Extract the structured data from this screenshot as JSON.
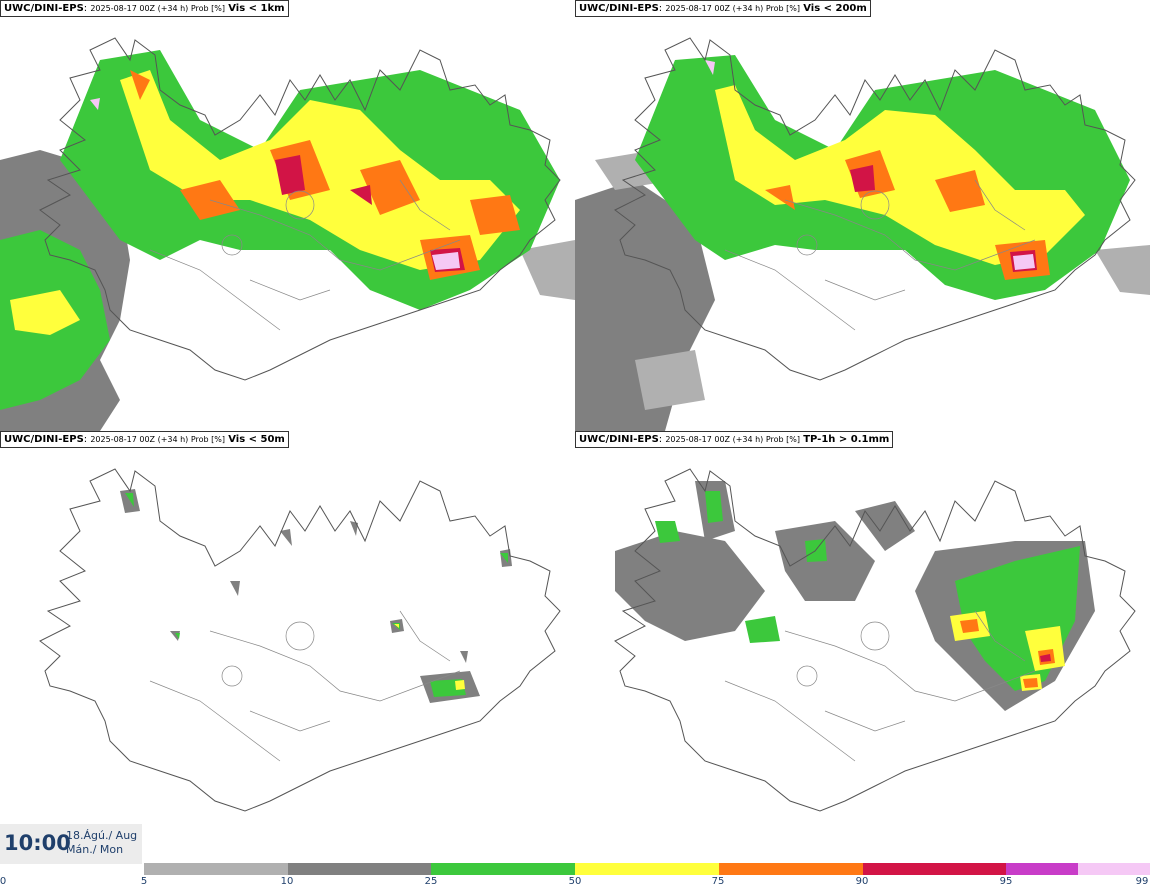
{
  "panels": [
    {
      "model": "UWC/DINI-EPS",
      "meta": "2025-08-17 00Z (+34 h) Prob [%]",
      "variable": "Vis < 1km"
    },
    {
      "model": "UWC/DINI-EPS",
      "meta": "2025-08-17 00Z (+34 h) Prob [%]",
      "variable": "Vis < 200m"
    },
    {
      "model": "UWC/DINI-EPS",
      "meta": "2025-08-17 00Z (+34 h) Prob [%]",
      "variable": "Vis < 50m"
    },
    {
      "model": "UWC/DINI-EPS",
      "meta": "2025-08-17 00Z (+34 h) Prob [%]",
      "variable": "TP-1h > 0.1mm"
    }
  ],
  "valid_time": {
    "time": "10:00",
    "date": "18.Ágú./ Aug",
    "weekday": "Mán./ Mon"
  },
  "legend": {
    "ticks": [
      "0",
      "5",
      "10",
      "25",
      "50",
      "75",
      "90",
      "95",
      "99"
    ],
    "colors": [
      "#b0b0b0",
      "#808080",
      "#3cc83c",
      "#ffff3c",
      "#ff7814",
      "#d21446",
      "#c83cc8",
      "#f5c8f5"
    ]
  }
}
